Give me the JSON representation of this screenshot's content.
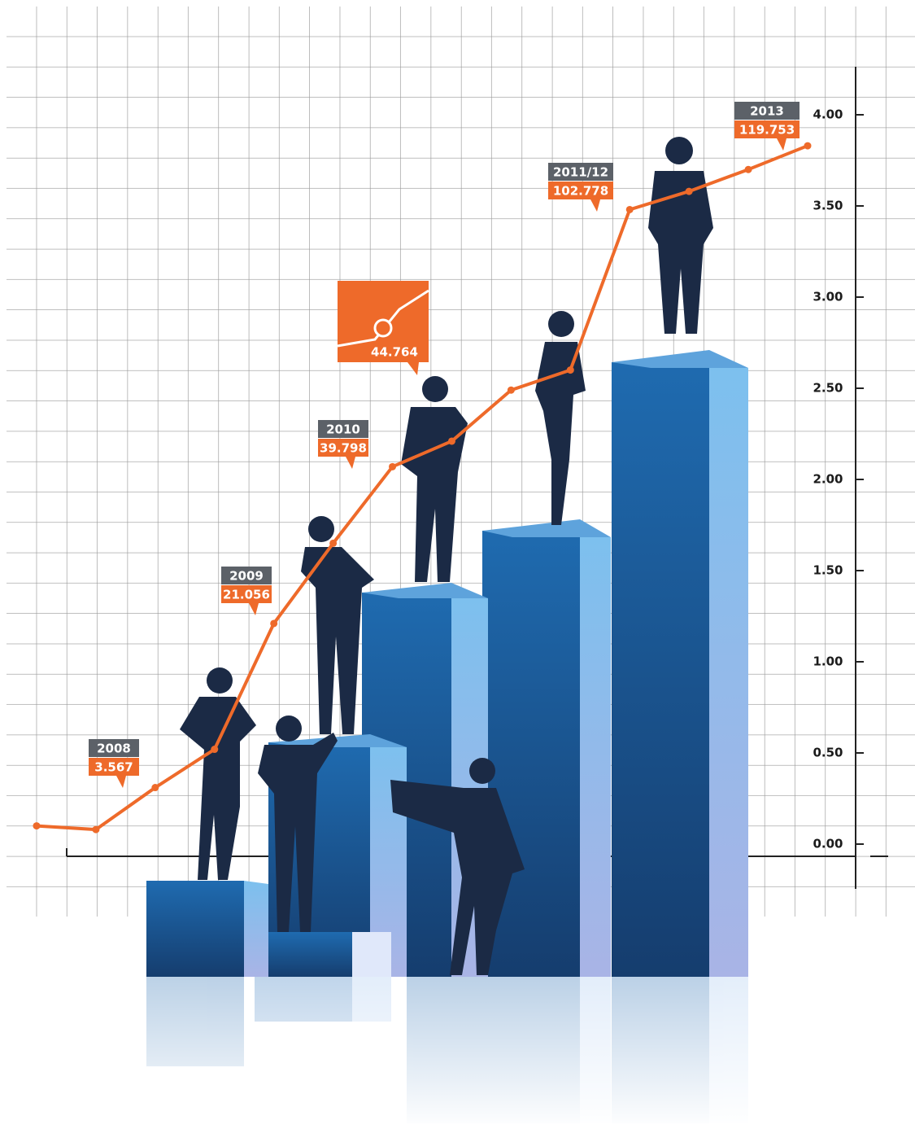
{
  "chart_data": {
    "type": "line",
    "color": "#ee6a2a",
    "categories": [
      null,
      null,
      null,
      null,
      null,
      null,
      null,
      null,
      null,
      null,
      null,
      null,
      null,
      null
    ],
    "values": [
      0.1,
      0.08,
      0.31,
      0.52,
      1.21,
      1.65,
      2.07,
      2.21,
      2.49,
      2.6,
      3.48,
      3.58,
      3.7,
      3.83
    ],
    "ylim": [
      0,
      4
    ],
    "yticks": [
      {
        "value": 0,
        "label": "0.00"
      },
      {
        "value": 0.5,
        "label": "0.50"
      },
      {
        "value": 1,
        "label": "1.00"
      },
      {
        "value": 1.5,
        "label": "1.50"
      },
      {
        "value": 2,
        "label": "2.00"
      },
      {
        "value": 2.5,
        "label": "2.50"
      },
      {
        "value": 3,
        "label": "3.00"
      },
      {
        "value": 3.5,
        "label": "3.50"
      },
      {
        "value": 4,
        "label": "4.00"
      }
    ],
    "annotations": [
      {
        "label": "2008",
        "text": "3.567"
      },
      {
        "label": "2009",
        "text": "21.056"
      },
      {
        "label": "2010",
        "text": "39.798"
      },
      {
        "text": "44.764"
      },
      {
        "label": "2011/12",
        "text": "102.778"
      },
      {
        "label": "2013",
        "text": "119.753"
      }
    ]
  }
}
